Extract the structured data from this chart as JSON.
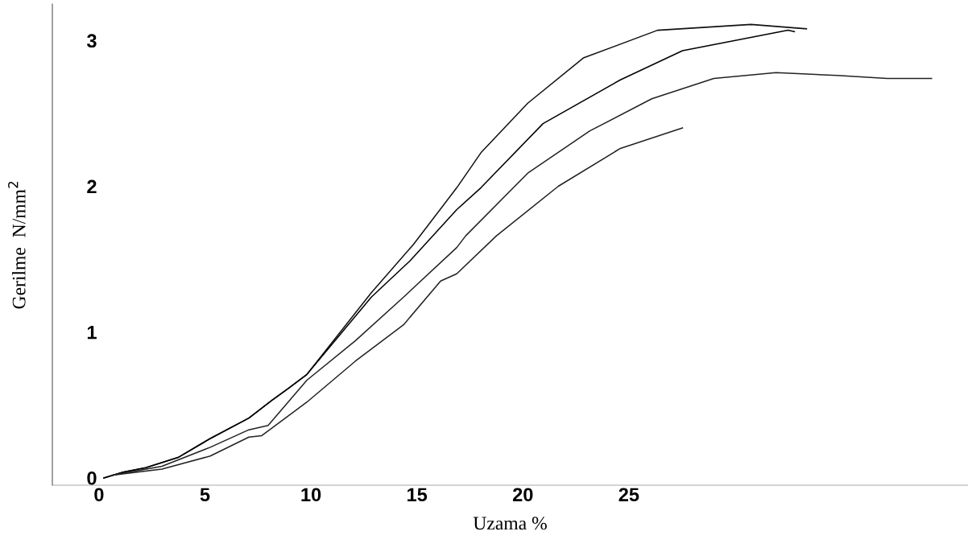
{
  "chart_data": {
    "type": "line",
    "xlabel": "Uzama %",
    "ylabel": "Gerilme  N/mm$^{2}$",
    "xlim": [
      -2.2,
      41
    ],
    "ylim": [
      -0.05,
      3.25
    ],
    "xticks": [
      0,
      5,
      10,
      15,
      20,
      25
    ],
    "yticks": [
      0,
      1,
      2,
      3
    ],
    "grid": false,
    "legend": false,
    "marker": "none",
    "line_style": "solid",
    "series": [
      {
        "color": "#111111",
        "x": [
          0.23,
          1.14,
          2.21,
          3.73,
          5.25,
          7.07,
          8.14,
          8.9,
          9.81,
          12.85,
          14.83,
          16.88,
          18.02,
          20.23,
          22.85,
          26.35,
          30.76,
          33.38
        ],
        "values": [
          0,
          0.04,
          0.07,
          0.14,
          0.27,
          0.41,
          0.53,
          0.61,
          0.71,
          1.27,
          1.6,
          1.99,
          2.23,
          2.57,
          2.88,
          3.07,
          3.11,
          3.08
        ]
      },
      {
        "color": "#000000",
        "x": [
          0.23,
          1.14,
          2.21,
          3.73,
          5.25,
          7.07,
          8.14,
          8.9,
          9.81,
          12.85,
          14.68,
          16.88,
          18.02,
          20.95,
          24.6,
          27.53,
          32.51,
          32.81
        ],
        "values": [
          0,
          0.04,
          0.07,
          0.14,
          0.27,
          0.41,
          0.53,
          0.61,
          0.71,
          1.24,
          1.49,
          1.84,
          1.99,
          2.43,
          2.73,
          2.93,
          3.07,
          3.06
        ]
      },
      {
        "color": "#222222",
        "x": [
          0.68,
          2.97,
          5.25,
          7.07,
          7.98,
          9.81,
          12.09,
          14.37,
          16.88,
          17.3,
          20.23,
          23.16,
          26.08,
          29.01,
          31.94,
          34.83,
          37.19,
          39.28
        ],
        "values": [
          0.02,
          0.08,
          0.21,
          0.33,
          0.36,
          0.67,
          0.94,
          1.24,
          1.58,
          1.66,
          2.09,
          2.38,
          2.6,
          2.74,
          2.78,
          2.76,
          2.74,
          2.74
        ]
      },
      {
        "color": "#222222",
        "x": [
          0.68,
          2.97,
          5.25,
          7.07,
          7.68,
          9.81,
          12.09,
          14.37,
          16.12,
          16.88,
          18.75,
          21.67,
          24.6,
          27.53
        ],
        "values": [
          0.02,
          0.06,
          0.15,
          0.28,
          0.29,
          0.52,
          0.8,
          1.05,
          1.35,
          1.4,
          1.66,
          2.0,
          2.26,
          2.4
        ]
      }
    ]
  }
}
